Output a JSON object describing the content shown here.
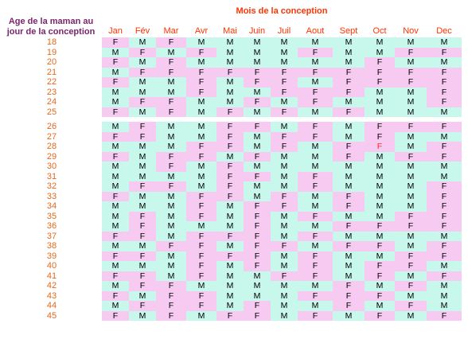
{
  "header": {
    "row_label": "Age de la maman au jour de la conception",
    "column_label": "Mois de la conception"
  },
  "months": [
    "Jan",
    "Fév",
    "Mar",
    "Avr",
    "Mai",
    "Juin",
    "Juil",
    "Aout",
    "Sept",
    "Oct",
    "Nov",
    "Dec"
  ],
  "colors": {
    "female_bg": "#f7caf2",
    "male_bg": "#c8f7ec",
    "header_accent": "#ff3300",
    "age_text": "#e26a1e",
    "title_text": "#7b246e",
    "highlight_cell_text": "#ff2a2a"
  },
  "rows": [
    {
      "age": "18",
      "cells": [
        "F",
        "M",
        "F",
        "M",
        "M",
        "M",
        "M",
        "M",
        "M",
        "M",
        "M",
        "M"
      ]
    },
    {
      "age": "19",
      "cells": [
        "M",
        "F",
        "M",
        "F",
        "M",
        "M",
        "M",
        "F",
        "M",
        "M",
        "F",
        "F"
      ]
    },
    {
      "age": "20",
      "cells": [
        "F",
        "M",
        "F",
        "M",
        "M",
        "M",
        "M",
        "M",
        "M",
        "F",
        "M",
        "M"
      ]
    },
    {
      "age": "21",
      "cells": [
        "M",
        "F",
        "F",
        "F",
        "F",
        "F",
        "F",
        "F",
        "F",
        "F",
        "F",
        "F"
      ]
    },
    {
      "age": "22",
      "cells": [
        "F",
        "M",
        "M",
        "F",
        "M",
        "F",
        "F",
        "M",
        "F",
        "F",
        "F",
        "F"
      ]
    },
    {
      "age": "23",
      "cells": [
        "M",
        "M",
        "M",
        "F",
        "M",
        "M",
        "F",
        "F",
        "F",
        "M",
        "M",
        "F"
      ]
    },
    {
      "age": "24",
      "cells": [
        "M",
        "F",
        "F",
        "M",
        "M",
        "F",
        "M",
        "F",
        "M",
        "M",
        "M",
        "F"
      ]
    },
    {
      "age": "25",
      "cells": [
        "F",
        "M",
        "F",
        "M",
        "F",
        "M",
        "F",
        "M",
        "F",
        "M",
        "M",
        "M"
      ]
    },
    {
      "age": "26",
      "cells": [
        "M",
        "F",
        "M",
        "M",
        "F",
        "F",
        "M",
        "F",
        "M",
        "F",
        "F",
        "F"
      ]
    },
    {
      "age": "27",
      "cells": [
        "F",
        "F",
        "M",
        "M",
        "F",
        "M",
        "F",
        "F",
        "M",
        "F",
        "M",
        "M"
      ]
    },
    {
      "age": "28",
      "cells": [
        "M",
        "M",
        "M",
        "F",
        "F",
        "M",
        "F",
        "M",
        "F",
        "F",
        "M",
        "F"
      ]
    },
    {
      "age": "29",
      "cells": [
        "F",
        "M",
        "F",
        "F",
        "M",
        "F",
        "M",
        "M",
        "F",
        "M",
        "F",
        "F"
      ]
    },
    {
      "age": "30",
      "cells": [
        "M",
        "M",
        "F",
        "M",
        "F",
        "M",
        "M",
        "M",
        "M",
        "M",
        "M",
        "M"
      ]
    },
    {
      "age": "31",
      "cells": [
        "M",
        "M",
        "M",
        "M",
        "F",
        "F",
        "M",
        "F",
        "M",
        "M",
        "M",
        "M"
      ]
    },
    {
      "age": "32",
      "cells": [
        "M",
        "F",
        "F",
        "M",
        "F",
        "M",
        "M",
        "F",
        "M",
        "M",
        "M",
        "F"
      ]
    },
    {
      "age": "33",
      "cells": [
        "F",
        "M",
        "M",
        "F",
        "F",
        "M",
        "F",
        "M",
        "F",
        "M",
        "M",
        "F"
      ]
    },
    {
      "age": "34",
      "cells": [
        "M",
        "M",
        "M",
        "F",
        "M",
        "F",
        "F",
        "M",
        "F",
        "M",
        "M",
        "F"
      ]
    },
    {
      "age": "35",
      "cells": [
        "M",
        "F",
        "M",
        "F",
        "M",
        "F",
        "M",
        "F",
        "M",
        "M",
        "F",
        "F"
      ]
    },
    {
      "age": "36",
      "cells": [
        "M",
        "F",
        "M",
        "M",
        "M",
        "F",
        "M",
        "M",
        "F",
        "F",
        "F",
        "F"
      ]
    },
    {
      "age": "37",
      "cells": [
        "F",
        "F",
        "M",
        "F",
        "F",
        "F",
        "M",
        "F",
        "M",
        "M",
        "M",
        "M"
      ]
    },
    {
      "age": "38",
      "cells": [
        "M",
        "M",
        "F",
        "F",
        "M",
        "F",
        "F",
        "M",
        "F",
        "F",
        "M",
        "F"
      ]
    },
    {
      "age": "39",
      "cells": [
        "F",
        "F",
        "M",
        "F",
        "F",
        "F",
        "M",
        "F",
        "M",
        "M",
        "F",
        "F"
      ]
    },
    {
      "age": "40",
      "cells": [
        "M",
        "M",
        "M",
        "F",
        "M",
        "F",
        "M",
        "F",
        "M",
        "F",
        "F",
        "M"
      ]
    },
    {
      "age": "41",
      "cells": [
        "F",
        "F",
        "M",
        "F",
        "M",
        "M",
        "F",
        "F",
        "M",
        "F",
        "M",
        "F"
      ]
    },
    {
      "age": "42",
      "cells": [
        "M",
        "F",
        "F",
        "M",
        "M",
        "M",
        "M",
        "M",
        "F",
        "M",
        "F",
        "M"
      ]
    },
    {
      "age": "43",
      "cells": [
        "F",
        "M",
        "F",
        "F",
        "M",
        "M",
        "M",
        "F",
        "F",
        "F",
        "M",
        "M"
      ]
    },
    {
      "age": "44",
      "cells": [
        "M",
        "F",
        "F",
        "F",
        "M",
        "F",
        "M",
        "M",
        "F",
        "M",
        "F",
        "M"
      ]
    },
    {
      "age": "45",
      "cells": [
        "F",
        "M",
        "F",
        "M",
        "F",
        "F",
        "M",
        "F",
        "M",
        "F",
        "M",
        "F"
      ]
    }
  ],
  "highlight": {
    "age": "28",
    "month": "Oct"
  }
}
